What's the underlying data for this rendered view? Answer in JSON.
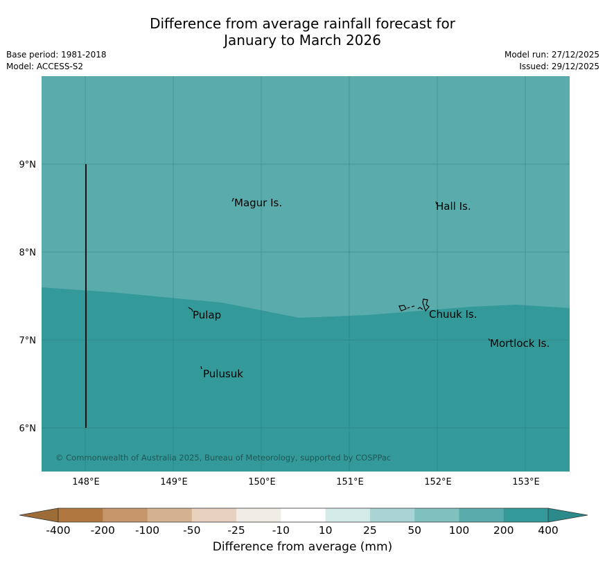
{
  "title_line1": "Difference from average rainfall forecast for",
  "title_line2": "January to March 2026",
  "meta": {
    "base_period": "Base period: 1981-2018",
    "model": "Model: ACCESS-S2",
    "model_run": "Model run: 27/12/2025",
    "issued": "Issued: 29/12/2025"
  },
  "copyright": "© Commonwealth of Australia 2025, Bureau of Meteorology, supported by COSPPac",
  "axes": {
    "lat_labels": [
      "9°N",
      "8°N",
      "7°N",
      "6°N"
    ],
    "lon_labels": [
      "148°E",
      "149°E",
      "150°E",
      "151°E",
      "152°E",
      "153°E"
    ]
  },
  "places": [
    {
      "name": "Magur Is."
    },
    {
      "name": "Hall Is."
    },
    {
      "name": "Pulap"
    },
    {
      "name": "Chuuk Is."
    },
    {
      "name": "Mortlock Is."
    },
    {
      "name": "Pulusuk"
    }
  ],
  "regions": [
    {
      "category": "100 to 200",
      "color": "#5aabab"
    },
    {
      "category": "200 to 400",
      "color": "#339999"
    }
  ],
  "colorbar": {
    "label": "Difference from average (mm)",
    "ticks": [
      "-400",
      "-200",
      "-100",
      "-50",
      "-25",
      "-10",
      "10",
      "25",
      "50",
      "100",
      "200",
      "400"
    ],
    "colors": [
      "#b07840",
      "#c4966a",
      "#d4b290",
      "#e6d2bf",
      "#f0ede6",
      "#ffffff",
      "#d4ebea",
      "#aad4d4",
      "#80c0bf",
      "#5aabab",
      "#339999"
    ],
    "under_color": "#9e6c38",
    "over_color": "#2b8a8a"
  }
}
